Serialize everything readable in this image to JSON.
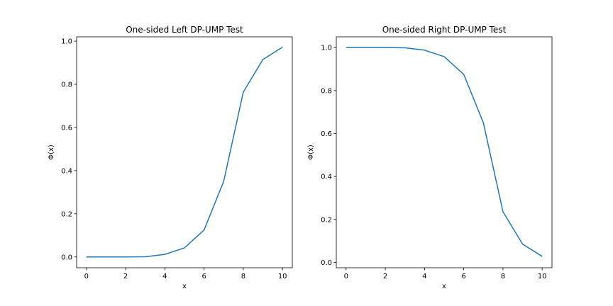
{
  "chart_data": [
    {
      "type": "line",
      "title": "One-sided Left DP-UMP Test",
      "xlabel": "x",
      "ylabel": "Φ(x)",
      "xlim": [
        -0.5,
        10.5
      ],
      "ylim": [
        -0.05,
        1.02
      ],
      "xticks": [
        0,
        2,
        4,
        6,
        8,
        10
      ],
      "yticks": [
        0.0,
        0.2,
        0.4,
        0.6,
        0.8,
        1.0
      ],
      "xtick_labels": [
        "0",
        "2",
        "4",
        "6",
        "8",
        "10"
      ],
      "ytick_labels": [
        "0.0",
        "0.2",
        "0.4",
        "0.6",
        "0.8",
        "1.0"
      ],
      "grid": false,
      "color": "#1f77b4",
      "series": [
        {
          "x": [
            0,
            1,
            2,
            3,
            4,
            5,
            6,
            7,
            8,
            9,
            10
          ],
          "values": [
            0.0,
            0.0,
            0.0,
            0.001,
            0.012,
            0.042,
            0.125,
            0.35,
            0.764,
            0.915,
            0.972
          ]
        }
      ]
    },
    {
      "type": "line",
      "title": "One-sided Right DP-UMP Test",
      "xlabel": "x",
      "ylabel": "Φ(x)",
      "xlim": [
        -0.5,
        10.5
      ],
      "ylim": [
        -0.025,
        1.05
      ],
      "xticks": [
        0,
        2,
        4,
        6,
        8,
        10
      ],
      "yticks": [
        0.0,
        0.2,
        0.4,
        0.6,
        0.8,
        1.0
      ],
      "xtick_labels": [
        "0",
        "2",
        "4",
        "6",
        "8",
        "10"
      ],
      "ytick_labels": [
        "0.0",
        "0.2",
        "0.4",
        "0.6",
        "0.8",
        "1.0"
      ],
      "grid": false,
      "color": "#1f77b4",
      "series": [
        {
          "x": [
            0,
            1,
            2,
            3,
            4,
            5,
            6,
            7,
            8,
            9,
            10
          ],
          "values": [
            1.0,
            1.0,
            1.0,
            0.999,
            0.988,
            0.958,
            0.875,
            0.65,
            0.236,
            0.085,
            0.028
          ]
        }
      ]
    }
  ]
}
